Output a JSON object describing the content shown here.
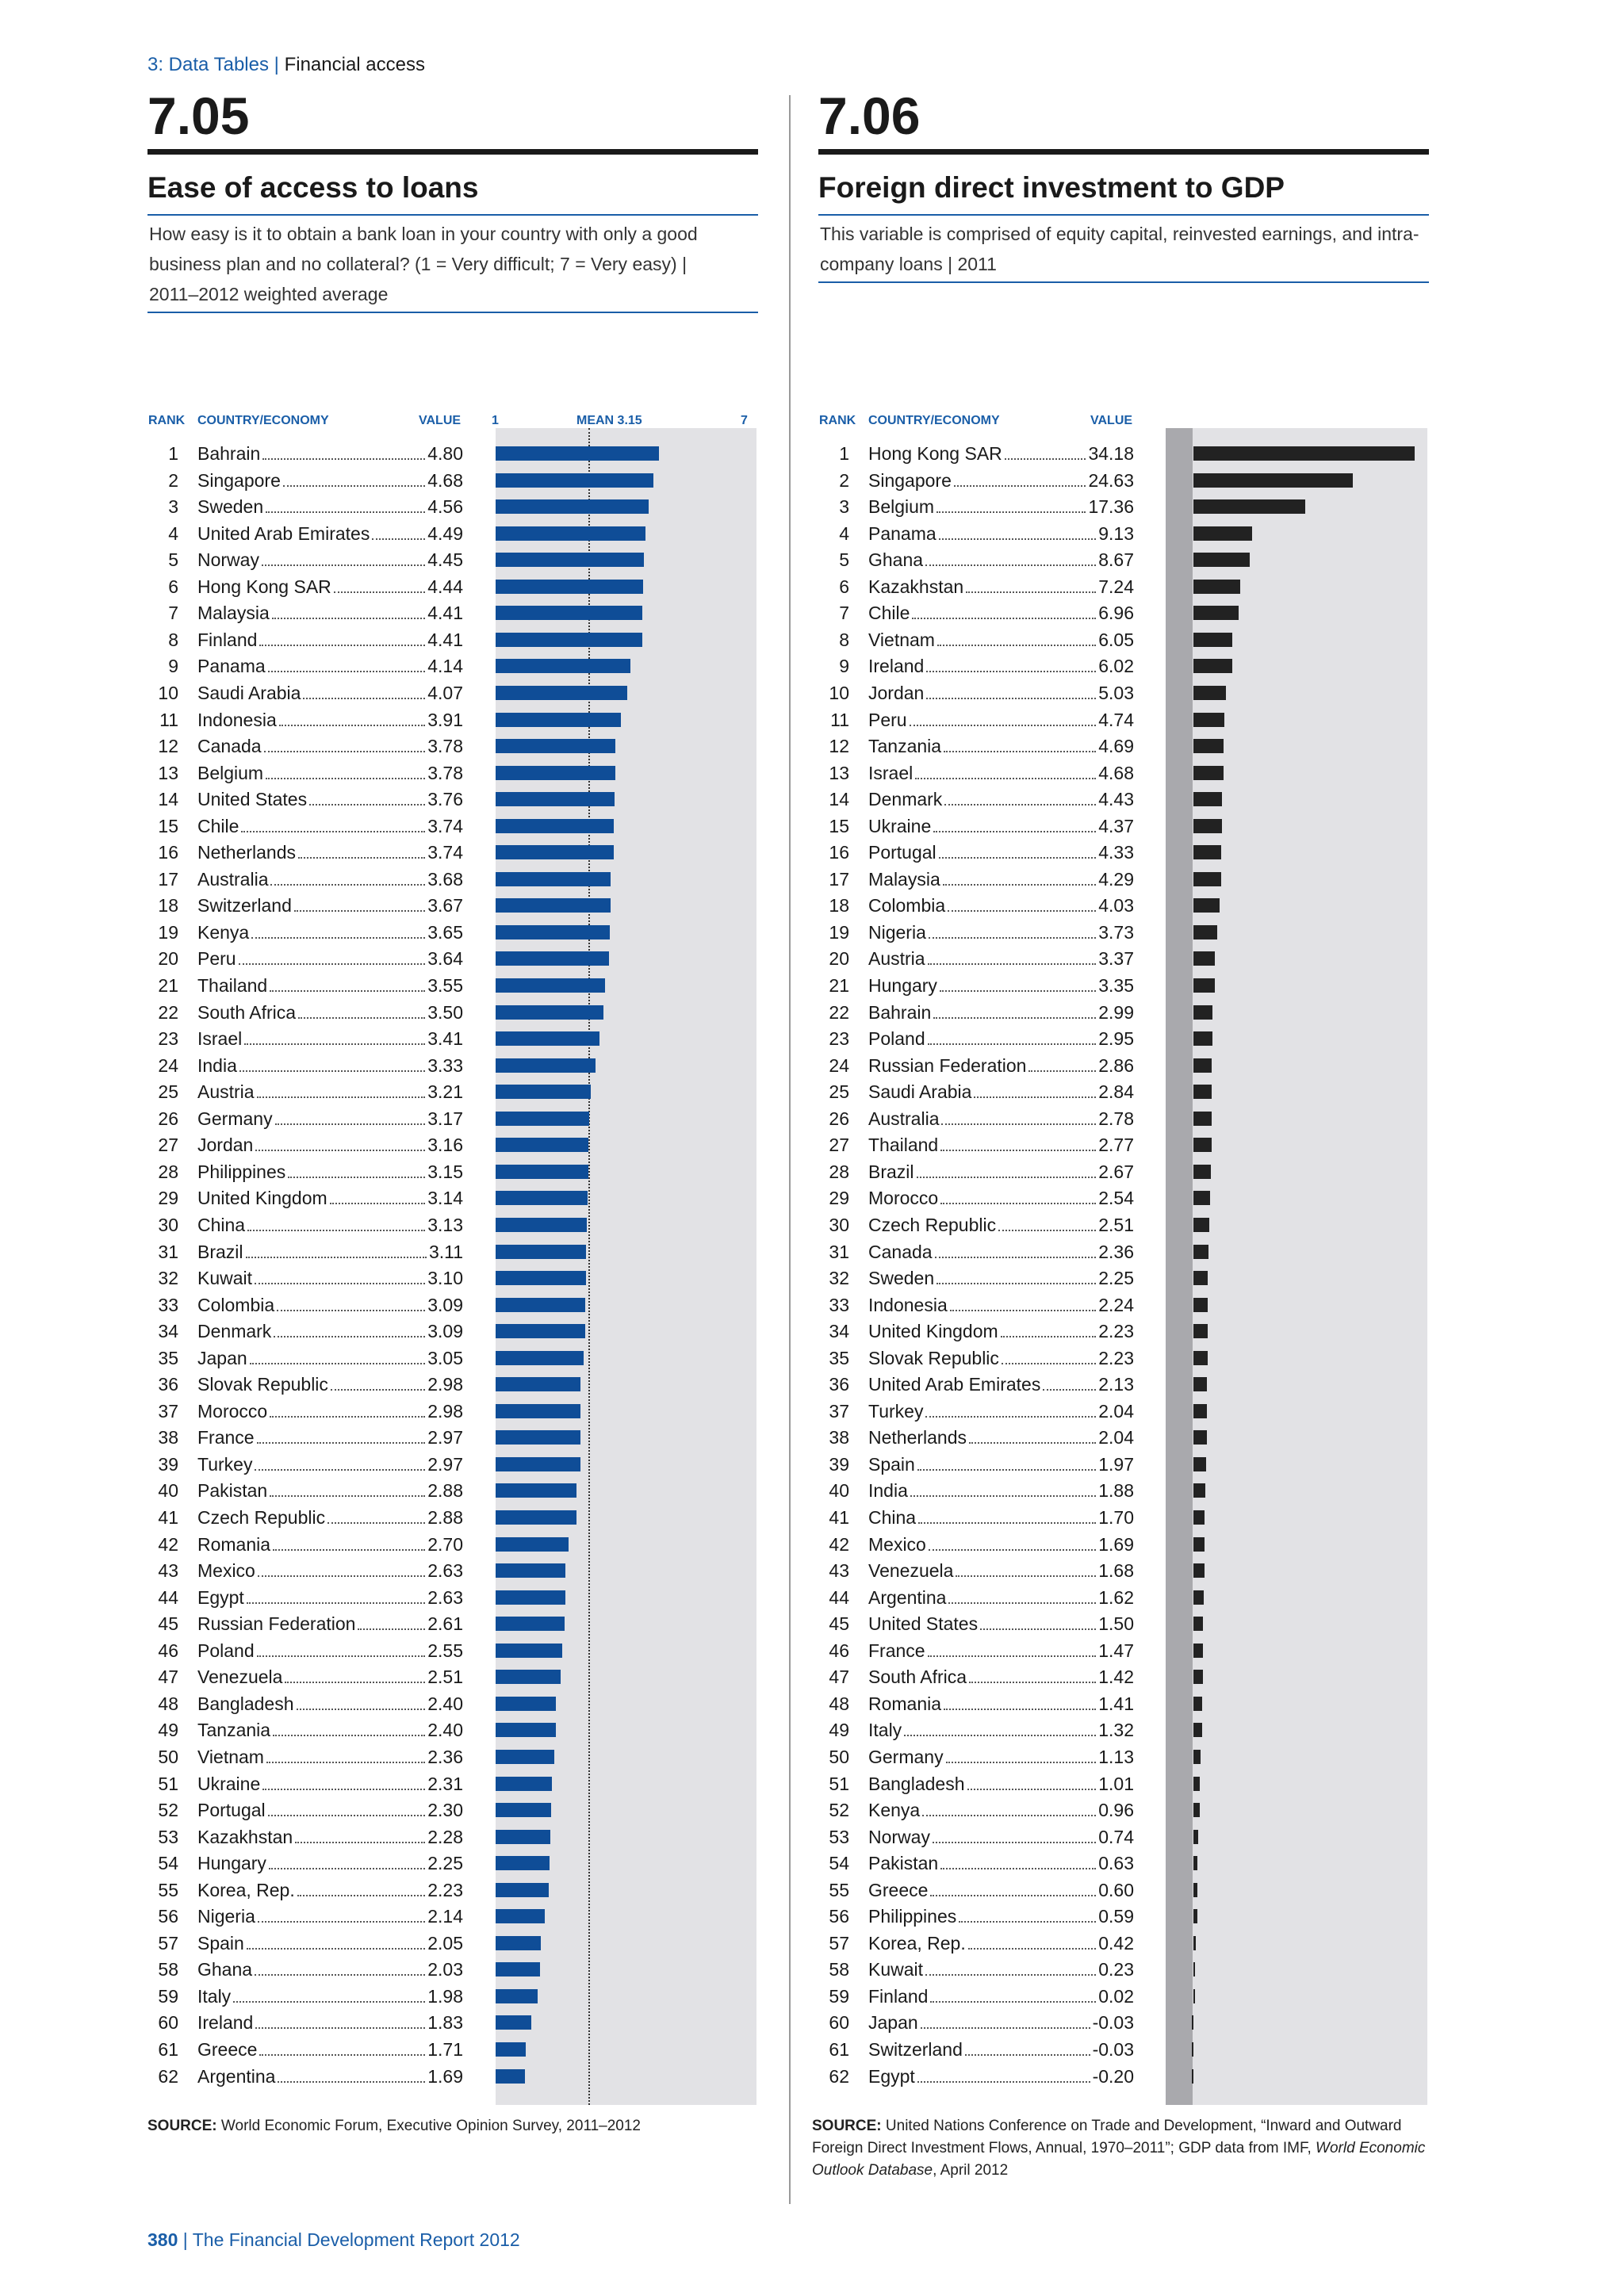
{
  "header": {
    "section_link": "3: Data Tables",
    "separator": "|",
    "section_name": "Financial access"
  },
  "footer": {
    "page_number": "380",
    "separator": "|",
    "report_title": "The Financial Development Report 2012"
  },
  "colors": {
    "loans_bar": "#0f4d97",
    "fdi_bar": "#222222",
    "panel_bg": "#e2e2e5",
    "accent": "#1a5ea8"
  },
  "panels": [
    {
      "number": "7.05",
      "title": "Ease of access to loans",
      "description": "How easy is it to obtain a bank loan in your country with only a good business plan and no collateral? (1 = Very difficult; 7 = Very easy) | 2011–2012 weighted average",
      "headers": {
        "rank": "RANK",
        "country": "COUNTRY/ECONOMY",
        "value": "VALUE"
      },
      "scale": {
        "min_label": "1",
        "mean_label": "MEAN 3.15",
        "max_label": "7"
      },
      "source_label": "SOURCE:",
      "source_text": "World Economic Forum, Executive Opinion Survey, 2011–2012"
    },
    {
      "number": "7.06",
      "title": "Foreign direct investment to GDP",
      "description": "This variable is comprised of equity capital, reinvested earnings, and intra-company loans | 2011",
      "headers": {
        "rank": "RANK",
        "country": "COUNTRY/ECONOMY",
        "value": "VALUE"
      },
      "source_label": "SOURCE:",
      "source_text": "United Nations Conference on Trade and Development, “Inward and Outward Foreign Direct Investment Flows, Annual, 1970–2011”; GDP data from IMF,",
      "source_italic": "World Economic Outlook Database",
      "source_tail": ", April 2012"
    }
  ],
  "chart_data": [
    {
      "type": "bar",
      "orientation": "horizontal",
      "xlim": [
        1,
        7
      ],
      "mean": 3.15,
      "ranks": [
        1,
        2,
        3,
        4,
        5,
        6,
        7,
        8,
        9,
        10,
        11,
        12,
        13,
        14,
        15,
        16,
        17,
        18,
        19,
        20,
        21,
        22,
        23,
        24,
        25,
        26,
        27,
        28,
        29,
        30,
        31,
        32,
        33,
        34,
        35,
        36,
        37,
        38,
        39,
        40,
        41,
        42,
        43,
        44,
        45,
        46,
        47,
        48,
        49,
        50,
        51,
        52,
        53,
        54,
        55,
        56,
        57,
        58,
        59,
        60,
        61,
        62
      ],
      "categories": [
        "Bahrain",
        "Singapore",
        "Sweden",
        "United Arab Emirates",
        "Norway",
        "Hong Kong SAR",
        "Malaysia",
        "Finland",
        "Panama",
        "Saudi Arabia",
        "Indonesia",
        "Canada",
        "Belgium",
        "United States",
        "Chile",
        "Netherlands",
        "Australia",
        "Switzerland",
        "Kenya",
        "Peru",
        "Thailand",
        "South Africa",
        "Israel",
        "India",
        "Austria",
        "Germany",
        "Jordan",
        "Philippines",
        "United Kingdom",
        "China",
        "Brazil",
        "Kuwait",
        "Colombia",
        "Denmark",
        "Japan",
        "Slovak Republic",
        "Morocco",
        "France",
        "Turkey",
        "Pakistan",
        "Czech Republic",
        "Romania",
        "Mexico",
        "Egypt",
        "Russian Federation",
        "Poland",
        "Venezuela",
        "Bangladesh",
        "Tanzania",
        "Vietnam",
        "Ukraine",
        "Portugal",
        "Kazakhstan",
        "Hungary",
        "Korea, Rep.",
        "Nigeria",
        "Spain",
        "Ghana",
        "Italy",
        "Ireland",
        "Greece",
        "Argentina"
      ],
      "value_labels": [
        "4.80",
        "4.68",
        "4.56",
        "4.49",
        "4.45",
        "4.44",
        "4.41",
        "4.41",
        "4.14",
        "4.07",
        "3.91",
        "3.78",
        "3.78",
        "3.76",
        "3.74",
        "3.74",
        "3.68",
        "3.67",
        "3.65",
        "3.64",
        "3.55",
        "3.50",
        "3.41",
        "3.33",
        "3.21",
        "3.17",
        "3.16",
        "3.15",
        "3.14",
        "3.13",
        "3.11",
        "3.10",
        "3.09",
        "3.09",
        "3.05",
        "2.98",
        "2.98",
        "2.97",
        "2.97",
        "2.88",
        "2.88",
        "2.70",
        "2.63",
        "2.63",
        "2.61",
        "2.55",
        "2.51",
        "2.40",
        "2.40",
        "2.36",
        "2.31",
        "2.30",
        "2.28",
        "2.25",
        "2.23",
        "2.14",
        "2.05",
        "2.03",
        "1.98",
        "1.83",
        "1.71",
        "1.69"
      ]
    },
    {
      "type": "bar",
      "orientation": "horizontal",
      "ranks": [
        1,
        2,
        3,
        4,
        5,
        6,
        7,
        8,
        9,
        10,
        11,
        12,
        13,
        14,
        15,
        16,
        17,
        18,
        19,
        20,
        21,
        22,
        23,
        24,
        25,
        26,
        27,
        28,
        29,
        30,
        31,
        32,
        33,
        34,
        35,
        36,
        37,
        38,
        39,
        40,
        41,
        42,
        43,
        44,
        45,
        46,
        47,
        48,
        49,
        50,
        51,
        52,
        53,
        54,
        55,
        56,
        57,
        58,
        59,
        60,
        61,
        62
      ],
      "categories": [
        "Hong Kong SAR",
        "Singapore",
        "Belgium",
        "Panama",
        "Ghana",
        "Kazakhstan",
        "Chile",
        "Vietnam",
        "Ireland",
        "Jordan",
        "Peru",
        "Tanzania",
        "Israel",
        "Denmark",
        "Ukraine",
        "Portugal",
        "Malaysia",
        "Colombia",
        "Nigeria",
        "Austria",
        "Hungary",
        "Bahrain",
        "Poland",
        "Russian Federation",
        "Saudi Arabia",
        "Australia",
        "Thailand",
        "Brazil",
        "Morocco",
        "Czech Republic",
        "Canada",
        "Sweden",
        "Indonesia",
        "United Kingdom",
        "Slovak Republic",
        "United Arab Emirates",
        "Turkey",
        "Netherlands",
        "Spain",
        "India",
        "China",
        "Mexico",
        "Venezuela",
        "Argentina",
        "United States",
        "France",
        "South Africa",
        "Romania",
        "Italy",
        "Germany",
        "Bangladesh",
        "Kenya",
        "Norway",
        "Pakistan",
        "Greece",
        "Philippines",
        "Korea, Rep.",
        "Kuwait",
        "Finland",
        "Japan",
        "Switzerland",
        "Egypt"
      ],
      "value_labels": [
        "34.18",
        "24.63",
        "17.36",
        "9.13",
        "8.67",
        "7.24",
        "6.96",
        "6.05",
        "6.02",
        "5.03",
        "4.74",
        "4.69",
        "4.68",
        "4.43",
        "4.37",
        "4.33",
        "4.29",
        "4.03",
        "3.73",
        "3.37",
        "3.35",
        "2.99",
        "2.95",
        "2.86",
        "2.84",
        "2.78",
        "2.77",
        "2.67",
        "2.54",
        "2.51",
        "2.36",
        "2.25",
        "2.24",
        "2.23",
        "2.23",
        "2.13",
        "2.04",
        "2.04",
        "1.97",
        "1.88",
        "1.70",
        "1.69",
        "1.68",
        "1.62",
        "1.50",
        "1.47",
        "1.42",
        "1.41",
        "1.32",
        "1.13",
        "1.01",
        "0.96",
        "0.74",
        "0.63",
        "0.60",
        "0.59",
        "0.42",
        "0.23",
        "0.02",
        "-0.03",
        "-0.03",
        "-0.20"
      ]
    }
  ]
}
